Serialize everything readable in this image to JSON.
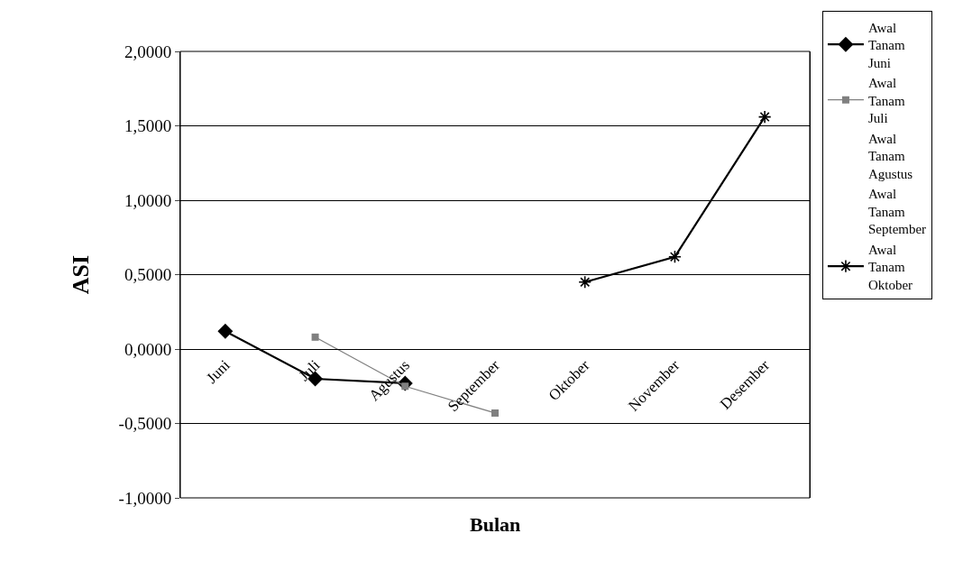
{
  "chart_data": {
    "type": "line",
    "xlabel": "Bulan",
    "ylabel": "ASI",
    "categories": [
      "Juni",
      "Juli",
      "Agustus",
      "September",
      "Oktober",
      "November",
      "Desember"
    ],
    "series": [
      {
        "name": "Awal Tanam Juni",
        "color": "#000000",
        "marker": "diamond",
        "values": [
          0.12,
          -0.2,
          -0.23,
          null,
          null,
          null,
          null
        ]
      },
      {
        "name": "Awal Tanam Juli",
        "color": "#808080",
        "marker": "square",
        "values": [
          null,
          0.08,
          -0.25,
          -0.43,
          null,
          null,
          null
        ]
      },
      {
        "name": "Awal Tanam Agustus",
        "marker": "none",
        "values": [
          null,
          null,
          null,
          null,
          null,
          null,
          null
        ]
      },
      {
        "name": "Awal Tanam September",
        "marker": "none",
        "values": [
          null,
          null,
          null,
          null,
          null,
          null,
          null
        ]
      },
      {
        "name": "Awal Tanam Oktober",
        "color": "#000000",
        "marker": "cross",
        "values": [
          null,
          null,
          null,
          null,
          0.45,
          0.62,
          1.56
        ]
      }
    ],
    "ylim": [
      -1,
      2
    ],
    "yticks": [
      {
        "value": -1,
        "label": "-1,0000"
      },
      {
        "value": -0.5,
        "label": "-0,5000"
      },
      {
        "value": 0,
        "label": "0,0000"
      },
      {
        "value": 0.5,
        "label": "0,5000"
      },
      {
        "value": 1,
        "label": "1,0000"
      },
      {
        "value": 1.5,
        "label": "1,5000"
      },
      {
        "value": 2,
        "label": "2,0000"
      }
    ],
    "grid": "y",
    "legend": "right"
  }
}
